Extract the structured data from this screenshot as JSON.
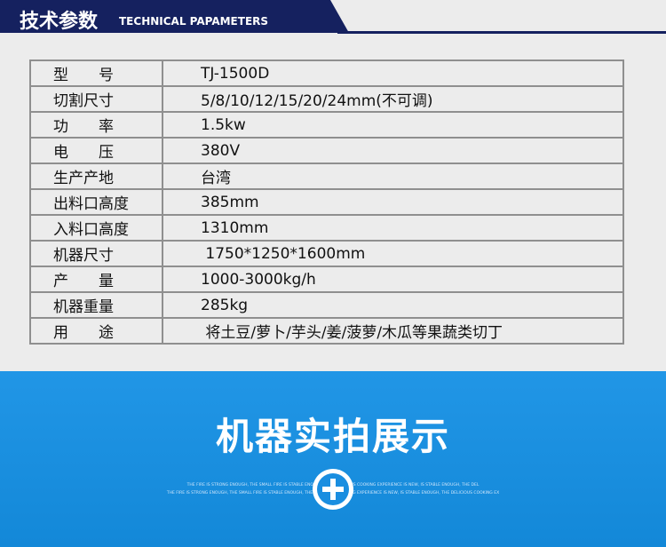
{
  "header": {
    "title": "技术参数",
    "subtitle": "TECHNICAL PAPAMETERS"
  },
  "table": {
    "rows": [
      [
        "型　　号",
        "TJ-1500D"
      ],
      [
        "切割尺寸",
        "5/8/10/12/15/20/24mm(不可调)"
      ],
      [
        "功　　率",
        "1.5kw"
      ],
      [
        "电　　压",
        "380V"
      ],
      [
        "生产产地",
        "台湾"
      ],
      [
        "出料口高度",
        "385mm"
      ],
      [
        "入料口高度",
        "1310mm"
      ],
      [
        "机器尺寸",
        " 1750*1250*1600mm"
      ],
      [
        "产　　量",
        "1000-3000kg/h"
      ],
      [
        "机器重量",
        "285kg"
      ],
      [
        "用　　途",
        " 将土豆/萝卜/芋头/姜/菠萝/木瓜等果蔬类切丁"
      ]
    ]
  },
  "banner": {
    "title": "机器实拍展示",
    "captions": [
      "THE FIRE IS STRONG ENOUGH, THE SMALL FIRE IS STABLE ENOUGH, THE DELICIOUS COOKING EXPERIENCE IS NEW, IS STABLE ENOUGH, THE DEL",
      "THE FIRE IS STRONG ENOUGH, THE SMALL FIRE IS STABLE ENOUGH, THE DELICIOUS COOKING EXPERIENCE IS NEW, IS STABLE ENOUGH, THE DELICIOUS COOKING EX"
    ]
  }
}
